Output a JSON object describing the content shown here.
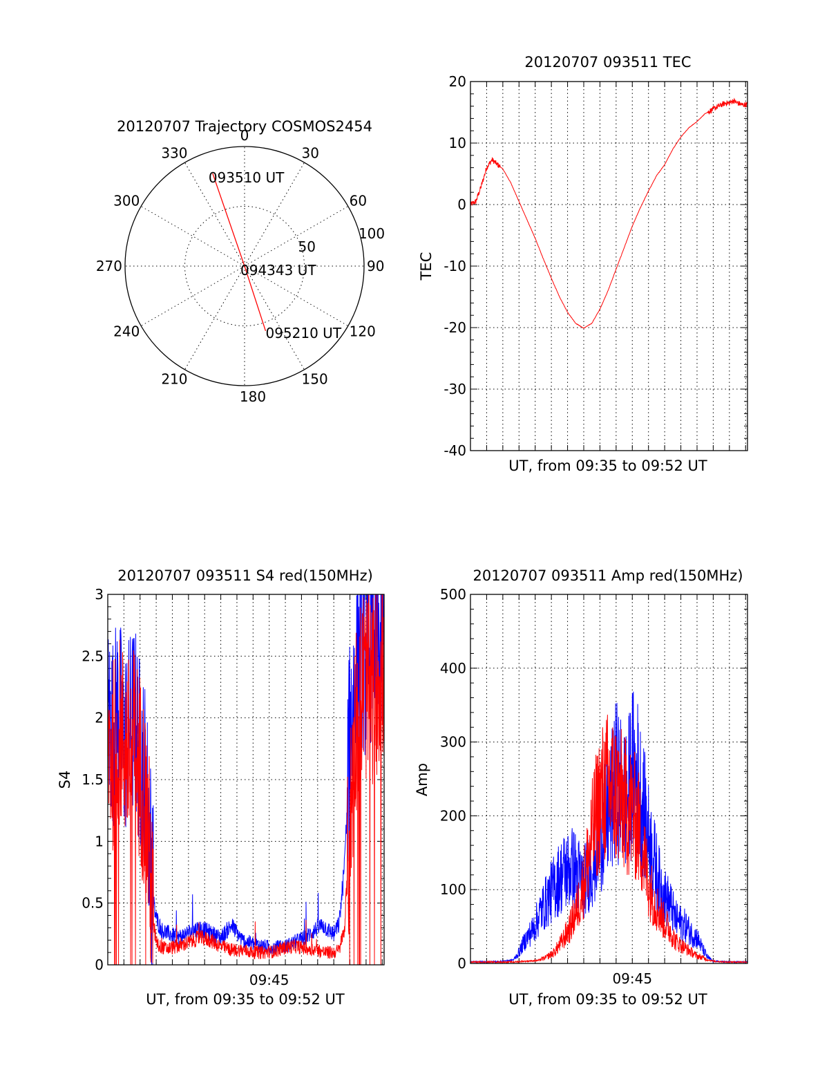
{
  "colors": {
    "red": "#ff0000",
    "blue": "#0000ff",
    "axis": "#000000"
  },
  "chart_data": [
    {
      "type": "polar",
      "title": "20120707 Trajectory COSMOS2454",
      "angle_labels": [
        "0",
        "30",
        "60",
        "90",
        "120",
        "150",
        "180",
        "210",
        "240",
        "270",
        "300",
        "330"
      ],
      "angles": [
        0,
        30,
        60,
        90,
        120,
        150,
        180,
        210,
        240,
        270,
        300,
        330
      ],
      "radial_labels": [
        "50",
        "100"
      ],
      "radial_values": [
        50,
        100
      ],
      "rlim": [
        0,
        100
      ],
      "grid": true,
      "series": [
        {
          "color": "#ff0000",
          "points": [
            {
              "az": 341,
              "r": 82,
              "label": "093510 UT"
            },
            {
              "az": 0,
              "r": 0,
              "label": "094343 UT"
            },
            {
              "az": 162,
              "r": 57,
              "label": "095210 UT"
            }
          ]
        }
      ]
    },
    {
      "type": "line",
      "title": "20120707 093511 TEC",
      "xlabel": "UT, from 09:35 to 09:52 UT",
      "ylabel": "TEC",
      "xlim": [
        0,
        1027
      ],
      "ylim": [
        -40,
        20
      ],
      "yticks": [
        -40,
        -30,
        -20,
        -10,
        0,
        10,
        20
      ],
      "ytick_labels": [
        "-40",
        "-30",
        "-20",
        "-10",
        "0",
        "10",
        "20"
      ],
      "grid": true,
      "series": [
        {
          "color": "#ff0000",
          "x": [
            0,
            20,
            40,
            60,
            80,
            100,
            120,
            150,
            180,
            210,
            240,
            270,
            300,
            330,
            360,
            390,
            420,
            450,
            480,
            510,
            540,
            570,
            600,
            630,
            660,
            690,
            720,
            750,
            780,
            810,
            840,
            870,
            900,
            910,
            930,
            945,
            960,
            975,
            990,
            1010,
            1027
          ],
          "y": [
            0,
            0.5,
            3,
            6,
            7.3,
            6.5,
            5.8,
            3.5,
            0.5,
            -2.5,
            -5.5,
            -8.8,
            -12,
            -15,
            -17.5,
            -19.3,
            -20.1,
            -19.3,
            -17,
            -14,
            -10.5,
            -7,
            -3.5,
            -0.5,
            2.2,
            4.7,
            6.5,
            9,
            11,
            12.5,
            13.5,
            14.8,
            15.5,
            15.8,
            16.2,
            16.5,
            16.5,
            16.9,
            16.5,
            16.2,
            16.3
          ]
        }
      ]
    },
    {
      "type": "line",
      "title": "20120707 093511 S4 red(150MHz)",
      "xlabel": "UT, from 09:35 to 09:52 UT",
      "ylabel": "S4",
      "xlim": [
        0,
        1027
      ],
      "ylim": [
        0,
        3
      ],
      "yticks": [
        0,
        0.5,
        1,
        1.5,
        2,
        2.5,
        3
      ],
      "ytick_labels": [
        "0",
        "0.5",
        "1",
        "1.5",
        "2",
        "2.5",
        "3"
      ],
      "xtick_labels": [
        "09:45"
      ],
      "xtick_values": [
        600
      ],
      "grid": true,
      "series": [
        {
          "color": "#0000ff",
          "x": [
            0,
            20,
            40,
            60,
            80,
            100,
            120,
            140,
            160,
            170,
            180,
            200,
            230,
            260,
            300,
            340,
            380,
            420,
            460,
            500,
            540,
            580,
            620,
            660,
            700,
            740,
            780,
            800,
            820,
            840,
            860,
            880,
            900,
            920,
            940,
            960,
            990,
            1010,
            1027
          ],
          "y": [
            2.0,
            1.9,
            2.1,
            1.8,
            1.9,
            2.0,
            1.7,
            1.5,
            0.9,
            0.5,
            0.38,
            0.28,
            0.25,
            0.22,
            0.26,
            0.3,
            0.26,
            0.22,
            0.32,
            0.2,
            0.17,
            0.15,
            0.14,
            0.15,
            0.19,
            0.23,
            0.3,
            0.32,
            0.28,
            0.25,
            0.33,
            0.8,
            1.9,
            2.3,
            2.6,
            2.4,
            2.7,
            2.5,
            2.6
          ]
        },
        {
          "color": "#ff0000",
          "x": [
            0,
            20,
            40,
            60,
            80,
            100,
            120,
            140,
            155,
            165,
            175,
            190,
            220,
            260,
            300,
            340,
            380,
            420,
            460,
            500,
            540,
            580,
            620,
            660,
            700,
            740,
            780,
            810,
            840,
            860,
            880,
            900,
            920,
            950,
            980,
            1010,
            1027
          ],
          "y": [
            1.8,
            1.7,
            1.9,
            1.8,
            1.7,
            1.8,
            1.6,
            1.3,
            0.9,
            0.45,
            0.25,
            0.15,
            0.13,
            0.15,
            0.18,
            0.22,
            0.2,
            0.15,
            0.12,
            0.12,
            0.1,
            0.1,
            0.11,
            0.14,
            0.15,
            0.13,
            0.12,
            0.1,
            0.1,
            0.12,
            0.3,
            1.1,
            2.0,
            2.3,
            2.2,
            2.4,
            2.3
          ]
        }
      ]
    },
    {
      "type": "line",
      "title": "20120707 093511 Amp red(150MHz)",
      "xlabel": "UT, from 09:35 to 09:52 UT",
      "ylabel": "Amp",
      "xlim": [
        0,
        1027
      ],
      "ylim": [
        0,
        500
      ],
      "yticks": [
        0,
        100,
        200,
        300,
        400,
        500
      ],
      "ytick_labels": [
        "0",
        "100",
        "200",
        "300",
        "400",
        "500"
      ],
      "xtick_labels": [
        "09:45"
      ],
      "xtick_values": [
        600
      ],
      "grid": true,
      "series": [
        {
          "color": "#0000ff",
          "x": [
            0,
            60,
            120,
            160,
            180,
            200,
            230,
            260,
            290,
            320,
            350,
            380,
            400,
            420,
            440,
            460,
            480,
            500,
            520,
            540,
            560,
            580,
            600,
            620,
            640,
            660,
            680,
            700,
            720,
            740,
            760,
            780,
            800,
            820,
            840,
            860,
            880,
            900,
            950,
            1027
          ],
          "y": [
            2,
            2,
            3,
            5,
            15,
            30,
            45,
            70,
            90,
            110,
            125,
            130,
            120,
            110,
            125,
            140,
            170,
            190,
            210,
            250,
            230,
            220,
            260,
            250,
            210,
            170,
            140,
            110,
            90,
            80,
            60,
            55,
            50,
            40,
            35,
            20,
            8,
            3,
            2,
            2
          ]
        },
        {
          "color": "#ff0000",
          "x": [
            0,
            60,
            120,
            160,
            200,
            250,
            280,
            310,
            340,
            370,
            400,
            420,
            440,
            460,
            480,
            500,
            520,
            540,
            560,
            580,
            600,
            620,
            640,
            660,
            680,
            700,
            720,
            740,
            760,
            780,
            800,
            820,
            840,
            860,
            880,
            900,
            950,
            1027
          ],
          "y": [
            2,
            2,
            2,
            2,
            3,
            4,
            8,
            15,
            30,
            50,
            80,
            110,
            150,
            190,
            220,
            235,
            240,
            230,
            220,
            210,
            205,
            190,
            150,
            110,
            85,
            70,
            55,
            45,
            30,
            25,
            20,
            15,
            10,
            8,
            5,
            3,
            2,
            2
          ]
        }
      ]
    }
  ]
}
